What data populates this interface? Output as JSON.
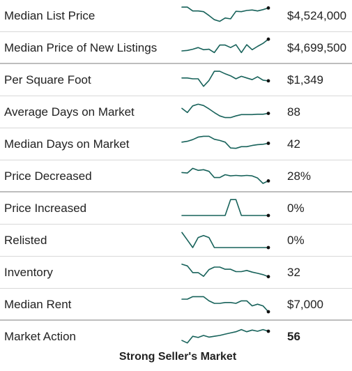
{
  "rows": [
    {
      "label": "Median List Price",
      "value": "$4,524,000",
      "trend": [
        0.95,
        0.95,
        0.72,
        0.72,
        0.68,
        0.45,
        0.2,
        0.1,
        0.3,
        0.25,
        0.7,
        0.68,
        0.75,
        0.78,
        0.72,
        0.8,
        0.9
      ],
      "separator": "thin"
    },
    {
      "label": "Median Price of New Listings",
      "value": "$4,699,500",
      "trend": [
        0.25,
        0.28,
        0.35,
        0.45,
        0.32,
        0.35,
        0.15,
        0.6,
        0.6,
        0.45,
        0.62,
        0.15,
        0.62,
        0.32,
        0.52,
        0.7,
        0.95
      ],
      "separator": "thick"
    },
    {
      "label": "Per Square Foot",
      "value": "$1,349",
      "trend": [
        0.55,
        0.55,
        0.5,
        0.5,
        0.05,
        0.4,
        0.95,
        0.95,
        0.8,
        0.68,
        0.5,
        0.65,
        0.55,
        0.45,
        0.62,
        0.42,
        0.38
      ],
      "separator": "thin"
    },
    {
      "label": "Average Days on Market",
      "value": "88",
      "trend": [
        0.65,
        0.4,
        0.8,
        0.9,
        0.82,
        0.62,
        0.4,
        0.2,
        0.1,
        0.1,
        0.2,
        0.28,
        0.28,
        0.28,
        0.3,
        0.3,
        0.35
      ],
      "separator": "thin"
    },
    {
      "label": "Median Days on Market",
      "value": "42",
      "trend": [
        0.55,
        0.6,
        0.7,
        0.85,
        0.9,
        0.9,
        0.72,
        0.65,
        0.55,
        0.2,
        0.18,
        0.28,
        0.28,
        0.35,
        0.4,
        0.42,
        0.48
      ],
      "separator": "thin"
    },
    {
      "label": "Price Decreased",
      "value": "28%",
      "trend": [
        0.65,
        0.62,
        0.9,
        0.78,
        0.82,
        0.72,
        0.35,
        0.35,
        0.52,
        0.45,
        0.48,
        0.45,
        0.48,
        0.45,
        0.32,
        0.0,
        0.15
      ],
      "separator": "thick"
    },
    {
      "label": "Price Increased",
      "value": "0%",
      "trend": [
        0,
        0,
        0,
        0,
        0,
        0,
        0,
        0,
        0,
        0.95,
        0.95,
        0,
        0,
        0,
        0,
        0,
        0
      ],
      "separator": "thin"
    },
    {
      "label": "Relisted",
      "value": "0%",
      "trend": [
        0.9,
        0.45,
        0.0,
        0.6,
        0.72,
        0.6,
        0.0,
        0.0,
        0.0,
        0.0,
        0.0,
        0.0,
        0.0,
        0.0,
        0.0,
        0.0,
        0.0
      ],
      "separator": "thin"
    },
    {
      "label": "Inventory",
      "value": "32",
      "trend": [
        0.92,
        0.82,
        0.42,
        0.42,
        0.2,
        0.6,
        0.75,
        0.75,
        0.62,
        0.62,
        0.48,
        0.48,
        0.55,
        0.45,
        0.38,
        0.3,
        0.18
      ],
      "separator": "thin"
    },
    {
      "label": "Median Rent",
      "value": "$7,000",
      "trend": [
        0.75,
        0.75,
        0.9,
        0.9,
        0.9,
        0.65,
        0.5,
        0.5,
        0.55,
        0.55,
        0.5,
        0.65,
        0.65,
        0.35,
        0.45,
        0.35,
        0.0
      ],
      "separator": "thick"
    },
    {
      "label": "Market Action",
      "value": "56",
      "trend": [
        0.2,
        0.05,
        0.45,
        0.38,
        0.5,
        0.4,
        0.45,
        0.5,
        0.58,
        0.65,
        0.72,
        0.85,
        0.72,
        0.82,
        0.75,
        0.85,
        0.75
      ],
      "separator": "none",
      "bold": true
    }
  ],
  "footer": "Strong Seller's Market",
  "colors": {
    "sparkline": "#17625a",
    "endpoint": "#111111"
  }
}
